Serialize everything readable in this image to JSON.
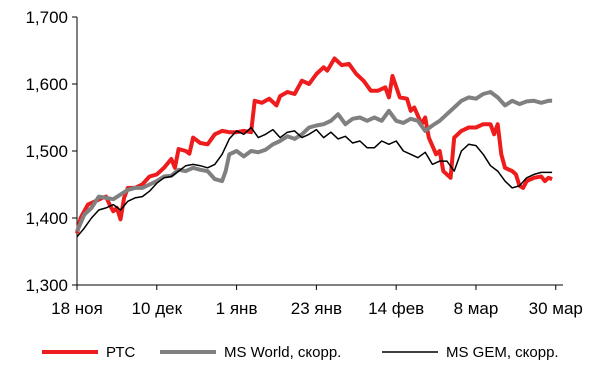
{
  "chart_data": {
    "type": "line",
    "title": "",
    "xlabel": "",
    "ylabel": "",
    "ylim": [
      1300,
      1700
    ],
    "yticks": [
      "1,300",
      "1,400",
      "1,500",
      "1,600",
      "1,700"
    ],
    "ytick_values": [
      1300,
      1400,
      1500,
      1600,
      1700
    ],
    "x_tick_labels": [
      "18 ноя",
      "10 дек",
      "1 янв",
      "23 янв",
      "14 фев",
      "8 мар",
      "30 мар"
    ],
    "x_tick_days": [
      0,
      22,
      44,
      66,
      88,
      110,
      132
    ],
    "x_range_days": [
      0,
      134
    ],
    "grid": false,
    "legend_position": "bottom",
    "series": [
      {
        "name": "РТС",
        "color": "#ee1c1c",
        "points": [
          [
            0,
            1377
          ],
          [
            1,
            1400
          ],
          [
            3,
            1420
          ],
          [
            5,
            1425
          ],
          [
            7,
            1430
          ],
          [
            8,
            1432
          ],
          [
            9,
            1420
          ],
          [
            10,
            1410
          ],
          [
            11,
            1415
          ],
          [
            12,
            1398
          ],
          [
            13,
            1430
          ],
          [
            14,
            1445
          ],
          [
            16,
            1445
          ],
          [
            18,
            1450
          ],
          [
            20,
            1462
          ],
          [
            22,
            1465
          ],
          [
            24,
            1475
          ],
          [
            26,
            1488
          ],
          [
            27,
            1475
          ],
          [
            28,
            1503
          ],
          [
            30,
            1500
          ],
          [
            31,
            1496
          ],
          [
            32,
            1520
          ],
          [
            34,
            1512
          ],
          [
            36,
            1510
          ],
          [
            38,
            1525
          ],
          [
            40,
            1530
          ],
          [
            42,
            1528
          ],
          [
            44,
            1528
          ],
          [
            46,
            1530
          ],
          [
            48,
            1528
          ],
          [
            49,
            1575
          ],
          [
            51,
            1572
          ],
          [
            53,
            1578
          ],
          [
            55,
            1568
          ],
          [
            56,
            1582
          ],
          [
            58,
            1588
          ],
          [
            60,
            1585
          ],
          [
            62,
            1605
          ],
          [
            64,
            1600
          ],
          [
            66,
            1615
          ],
          [
            68,
            1625
          ],
          [
            69,
            1620
          ],
          [
            71,
            1638
          ],
          [
            73,
            1628
          ],
          [
            75,
            1630
          ],
          [
            77,
            1615
          ],
          [
            79,
            1605
          ],
          [
            81,
            1590
          ],
          [
            83,
            1590
          ],
          [
            85,
            1595
          ],
          [
            86,
            1580
          ],
          [
            87,
            1612
          ],
          [
            89,
            1580
          ],
          [
            91,
            1578
          ],
          [
            92,
            1560
          ],
          [
            93,
            1565
          ],
          [
            95,
            1540
          ],
          [
            96,
            1550
          ],
          [
            97,
            1520
          ],
          [
            99,
            1495
          ],
          [
            100,
            1500
          ],
          [
            101,
            1470
          ],
          [
            103,
            1460
          ],
          [
            104,
            1520
          ],
          [
            106,
            1530
          ],
          [
            108,
            1535
          ],
          [
            110,
            1535
          ],
          [
            112,
            1540
          ],
          [
            114,
            1540
          ],
          [
            115,
            1525
          ],
          [
            116,
            1540
          ],
          [
            117,
            1495
          ],
          [
            118,
            1475
          ],
          [
            120,
            1470
          ],
          [
            121,
            1465
          ],
          [
            122,
            1448
          ],
          [
            123,
            1445
          ],
          [
            124,
            1455
          ],
          [
            126,
            1460
          ],
          [
            128,
            1462
          ],
          [
            129,
            1455
          ],
          [
            130,
            1460
          ],
          [
            131,
            1458
          ]
        ]
      },
      {
        "name": "MS World, скорр.",
        "color": "#808080",
        "points": [
          [
            0,
            1380
          ],
          [
            2,
            1405
          ],
          [
            4,
            1415
          ],
          [
            6,
            1432
          ],
          [
            8,
            1430
          ],
          [
            10,
            1428
          ],
          [
            12,
            1435
          ],
          [
            14,
            1442
          ],
          [
            16,
            1445
          ],
          [
            18,
            1445
          ],
          [
            20,
            1450
          ],
          [
            22,
            1455
          ],
          [
            24,
            1462
          ],
          [
            26,
            1463
          ],
          [
            28,
            1472
          ],
          [
            30,
            1470
          ],
          [
            32,
            1475
          ],
          [
            34,
            1472
          ],
          [
            36,
            1470
          ],
          [
            38,
            1458
          ],
          [
            40,
            1455
          ],
          [
            41,
            1470
          ],
          [
            42,
            1495
          ],
          [
            44,
            1500
          ],
          [
            46,
            1492
          ],
          [
            48,
            1500
          ],
          [
            50,
            1498
          ],
          [
            52,
            1502
          ],
          [
            54,
            1510
          ],
          [
            56,
            1515
          ],
          [
            58,
            1522
          ],
          [
            60,
            1518
          ],
          [
            62,
            1525
          ],
          [
            64,
            1535
          ],
          [
            66,
            1538
          ],
          [
            68,
            1540
          ],
          [
            70,
            1545
          ],
          [
            72,
            1555
          ],
          [
            74,
            1540
          ],
          [
            76,
            1548
          ],
          [
            78,
            1550
          ],
          [
            80,
            1545
          ],
          [
            82,
            1550
          ],
          [
            84,
            1545
          ],
          [
            86,
            1560
          ],
          [
            88,
            1545
          ],
          [
            90,
            1542
          ],
          [
            92,
            1548
          ],
          [
            94,
            1545
          ],
          [
            96,
            1530
          ],
          [
            98,
            1538
          ],
          [
            100,
            1545
          ],
          [
            102,
            1555
          ],
          [
            104,
            1565
          ],
          [
            106,
            1575
          ],
          [
            108,
            1580
          ],
          [
            110,
            1578
          ],
          [
            112,
            1585
          ],
          [
            114,
            1588
          ],
          [
            116,
            1580
          ],
          [
            118,
            1568
          ],
          [
            120,
            1575
          ],
          [
            122,
            1570
          ],
          [
            124,
            1574
          ],
          [
            126,
            1575
          ],
          [
            128,
            1572
          ],
          [
            130,
            1575
          ],
          [
            131,
            1575
          ]
        ]
      },
      {
        "name": "MS GEM, скорр.",
        "color": "#000000",
        "points": [
          [
            0,
            1372
          ],
          [
            2,
            1385
          ],
          [
            4,
            1400
          ],
          [
            6,
            1412
          ],
          [
            8,
            1415
          ],
          [
            10,
            1420
          ],
          [
            12,
            1412
          ],
          [
            14,
            1425
          ],
          [
            16,
            1430
          ],
          [
            18,
            1432
          ],
          [
            20,
            1440
          ],
          [
            22,
            1452
          ],
          [
            24,
            1460
          ],
          [
            26,
            1462
          ],
          [
            28,
            1470
          ],
          [
            30,
            1478
          ],
          [
            32,
            1480
          ],
          [
            34,
            1478
          ],
          [
            36,
            1475
          ],
          [
            38,
            1480
          ],
          [
            40,
            1495
          ],
          [
            42,
            1518
          ],
          [
            44,
            1530
          ],
          [
            46,
            1525
          ],
          [
            48,
            1535
          ],
          [
            50,
            1520
          ],
          [
            52,
            1525
          ],
          [
            54,
            1532
          ],
          [
            56,
            1520
          ],
          [
            58,
            1528
          ],
          [
            60,
            1530
          ],
          [
            62,
            1520
          ],
          [
            64,
            1525
          ],
          [
            66,
            1532
          ],
          [
            68,
            1520
          ],
          [
            70,
            1528
          ],
          [
            72,
            1518
          ],
          [
            74,
            1522
          ],
          [
            76,
            1512
          ],
          [
            78,
            1515
          ],
          [
            80,
            1505
          ],
          [
            82,
            1505
          ],
          [
            84,
            1515
          ],
          [
            86,
            1510
          ],
          [
            88,
            1515
          ],
          [
            90,
            1500
          ],
          [
            92,
            1495
          ],
          [
            94,
            1490
          ],
          [
            96,
            1498
          ],
          [
            98,
            1480
          ],
          [
            100,
            1485
          ],
          [
            102,
            1485
          ],
          [
            104,
            1470
          ],
          [
            106,
            1500
          ],
          [
            108,
            1510
          ],
          [
            110,
            1508
          ],
          [
            112,
            1495
          ],
          [
            114,
            1478
          ],
          [
            116,
            1470
          ],
          [
            118,
            1455
          ],
          [
            120,
            1445
          ],
          [
            122,
            1448
          ],
          [
            124,
            1460
          ],
          [
            126,
            1465
          ],
          [
            128,
            1468
          ],
          [
            130,
            1468
          ],
          [
            131,
            1468
          ]
        ]
      }
    ]
  }
}
